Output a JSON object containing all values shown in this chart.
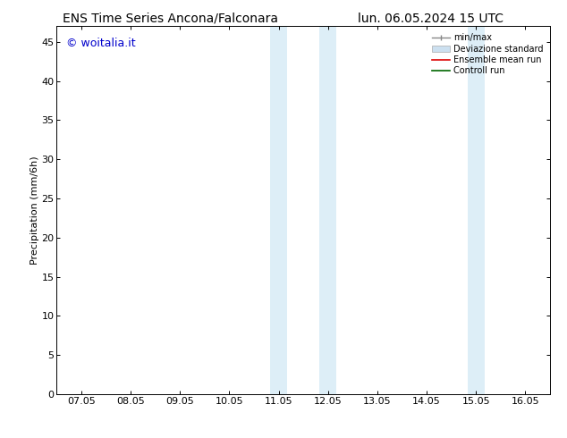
{
  "title_left": "ENS Time Series Ancona/Falconara",
  "title_right": "lun. 06.05.2024 15 UTC",
  "ylabel": "Precipitation (mm/6h)",
  "xlim": [
    0,
    9
  ],
  "xtick_labels": [
    "07.05",
    "08.05",
    "09.05",
    "10.05",
    "11.05",
    "12.05",
    "13.05",
    "14.05",
    "15.05",
    "16.05"
  ],
  "xtick_positions": [
    0,
    1,
    2,
    3,
    4,
    5,
    6,
    7,
    8,
    9
  ],
  "ylim": [
    0,
    47
  ],
  "ytick_labels": [
    "0",
    "5",
    "10",
    "15",
    "20",
    "25",
    "30",
    "35",
    "40",
    "45"
  ],
  "ytick_positions": [
    0,
    5,
    10,
    15,
    20,
    25,
    30,
    35,
    40,
    45
  ],
  "shaded_regions": [
    {
      "x_start": 3.83,
      "x_end": 4.17,
      "color": "#ddeef7"
    },
    {
      "x_start": 4.83,
      "x_end": 5.17,
      "color": "#ddeef7"
    },
    {
      "x_start": 7.83,
      "x_end": 8.17,
      "color": "#ddeef7"
    }
  ],
  "watermark_text": "© woitalia.it",
  "watermark_color": "#0000cc",
  "background_color": "#ffffff",
  "title_fontsize": 10,
  "tick_fontsize": 8,
  "ylabel_fontsize": 8,
  "watermark_fontsize": 9,
  "legend_fontsize": 7
}
